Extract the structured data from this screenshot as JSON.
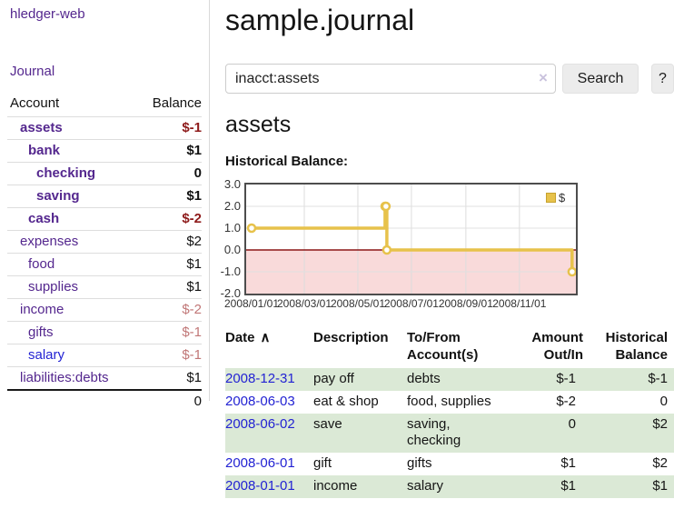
{
  "app": {
    "brand": "hledger-web",
    "nav": {
      "journal": "Journal"
    }
  },
  "sidebar": {
    "account_header": "Account",
    "balance_header": "Balance",
    "accounts": [
      {
        "name": "assets",
        "balance": "$-1",
        "depth": 1
      },
      {
        "name": "bank",
        "balance": "$1",
        "depth": 2
      },
      {
        "name": "checking",
        "balance": "0",
        "depth": 3
      },
      {
        "name": "saving",
        "balance": "$1",
        "depth": 3
      },
      {
        "name": "cash",
        "balance": "$-2",
        "depth": 2
      },
      {
        "name": "expenses",
        "balance": "$2",
        "depth": 1
      },
      {
        "name": "food",
        "balance": "$1",
        "depth": 2
      },
      {
        "name": "supplies",
        "balance": "$1",
        "depth": 2
      },
      {
        "name": "income",
        "balance": "$-2",
        "depth": 1
      },
      {
        "name": "gifts",
        "balance": "$-1",
        "depth": 2
      },
      {
        "name": "salary",
        "balance": "$-1",
        "depth": 2
      },
      {
        "name": "liabilities:debts",
        "balance": "$1",
        "depth": 1
      }
    ],
    "total": "0"
  },
  "header": {
    "title": "sample.journal"
  },
  "search": {
    "value": "inacct:assets",
    "clear_icon": "×",
    "search_button": "Search",
    "help_button": "?"
  },
  "account_page": {
    "heading": "assets",
    "chart_label": "Historical Balance:"
  },
  "chart_data": {
    "type": "line",
    "title": "Historical Balance",
    "series": [
      {
        "name": "$",
        "step": true,
        "color": "#e7c24b",
        "points": [
          [
            "2008-01-01",
            1
          ],
          [
            "2008-06-01",
            2
          ],
          [
            "2008-06-02",
            2
          ],
          [
            "2008-06-03",
            0
          ],
          [
            "2008-12-31",
            -1
          ]
        ]
      }
    ],
    "ylim": [
      -2,
      3
    ],
    "y_ticks": [
      3.0,
      2.0,
      1.0,
      0.0,
      -1.0,
      -2.0
    ],
    "x_ticks": [
      "2008/01/01",
      "2008/03/01",
      "2008/05/01",
      "2008/07/01",
      "2008/09/01",
      "2008/11/01"
    ],
    "legend": {
      "label": "$",
      "position": "top-right"
    },
    "grid": true,
    "negative_fill": "#f9dada",
    "zero_line_color": "#8c1717"
  },
  "register": {
    "sort_icon": "∧",
    "headers": [
      {
        "line1": "Date"
      },
      {
        "line1": "Description"
      },
      {
        "line1": "To/From",
        "line2": "Account(s)"
      },
      {
        "line1": "Amount",
        "line2": "Out/In"
      },
      {
        "line1": "Historical",
        "line2": "Balance"
      }
    ],
    "rows": [
      {
        "date": "2008-12-31",
        "description": "pay off",
        "accounts": "debts",
        "amount": "$-1",
        "balance": "$-1"
      },
      {
        "date": "2008-06-03",
        "description": "eat & shop",
        "accounts": "food, supplies",
        "amount": "$-2",
        "balance": "0"
      },
      {
        "date": "2008-06-02",
        "description": "save",
        "accounts": "saving, checking",
        "amount": "0",
        "balance": "$2"
      },
      {
        "date": "2008-06-01",
        "description": "gift",
        "accounts": "gifts",
        "amount": "$1",
        "balance": "$2"
      },
      {
        "date": "2008-01-01",
        "description": "income",
        "accounts": "salary",
        "amount": "$1",
        "balance": "$1"
      }
    ]
  },
  "colors": {
    "accent_purple": "#54278e",
    "link_blue": "#2323d3",
    "negative_strong": "#8e1b1b",
    "negative_soft": "#c17777",
    "negative_register": "#9c2222",
    "row_stripe_green": "#dbe9d6",
    "chart_line_gold": "#e7c24b"
  }
}
